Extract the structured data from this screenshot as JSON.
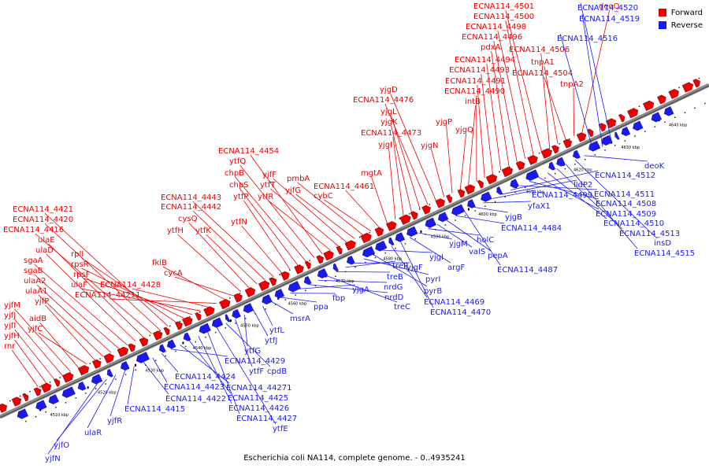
{
  "caption": "Escherichia coli NA114, complete genome. - 0..4935241",
  "legend": [
    {
      "label": "Forward",
      "color": "#ee0000"
    },
    {
      "label": "Reverse",
      "color": "#1a1aee"
    }
  ],
  "colors": {
    "forward": "#ee0000",
    "reverse": "#1a1aee",
    "backbone": "#888888"
  },
  "ticks": [
    "4510 kbp",
    "4520 kbp",
    "4530 kbp",
    "4540 kbp",
    "4550 kbp",
    "4560 kbp",
    "4570 kbp",
    "4580 kbp",
    "4590 kbp",
    "4600 kbp",
    "4610 kbp",
    "4620 kbp",
    "4630 kbp",
    "4640 kbp"
  ],
  "forward_labels": [
    "rnr",
    "yjfH",
    "yjfI",
    "yjfJ",
    "yjfM",
    "aidB",
    "yjfC",
    "yjfP",
    "ulaA1",
    "ulaA2",
    "sgaB",
    "sgaA",
    "ulaD",
    "ulaE",
    "ECNA114_4416",
    "ECNA114_4420",
    "ECNA114_4421",
    "rplI",
    "rpsR",
    "rpsF",
    "ulaF",
    "ECNA114_4428",
    "ECNA114_44211",
    "fklB",
    "cycA",
    "ytfH",
    "cysQ",
    "ytfK",
    "ECNA114_4442",
    "ECNA114_4443",
    "ytfN",
    "ytfP",
    "chpS",
    "chpB",
    "ytfQ",
    "ECNA114_4454",
    "ytfR",
    "ytfT",
    "yjfF",
    "yjfG",
    "pmbA",
    "cybC",
    "ECNA114_4461",
    "mgtA",
    "yjgI",
    "ECNA114_4473",
    "yjgK",
    "yjgL",
    "ECNA114_4476",
    "yjgD",
    "yjgN",
    "yjgP",
    "yjgQ",
    "intB",
    "ECNA114_4490",
    "ECNA114_4491",
    "ECNA114_4493",
    "ECNA114_4494",
    "pdxA",
    "ECNA114_4496",
    "ECNA114_4498",
    "ECNA114_4500",
    "ECNA114_4501",
    "ECNA114_4506",
    "tnpA1",
    "ECNA114_4504",
    "tnpA2",
    "deoQ"
  ],
  "reverse_labels": [
    "yjfN",
    "yjfO",
    "ulaR",
    "yjfR",
    "ECNA114_4415",
    "ECNA114_4422",
    "ECNA114_4423",
    "ECNA114_4424",
    "ECNA114_4429",
    "ECNA114_44271",
    "ECNA114_4425",
    "ECNA114_4426",
    "ECNA114_4427",
    "ytfE",
    "cpdB",
    "ytfF",
    "ytfG",
    "ytfJ",
    "ytfL",
    "msrA",
    "ppa",
    "fbp",
    "yjgA",
    "nrdD",
    "nrdG",
    "treC",
    "treB",
    "treR",
    "yjgF",
    "pyrI",
    "pyrB",
    "yjgI",
    "ECNA114_4469",
    "ECNA114_4470",
    "argF",
    "yjgM",
    "holC",
    "valS",
    "pepA",
    "ECNA114_4484",
    "ECNA114_4487",
    "yjgB",
    "yfaX1",
    "ECNA114_4499",
    "lldP2",
    "ECNA114_4512",
    "ECNA114_4511",
    "ECNA114_4508",
    "ECNA114_4509",
    "ECNA114_4510",
    "ECNA114_4513",
    "ECNA114_4515",
    "insD",
    "deoK",
    "ECNA114_4516",
    "ECNA114_4519",
    "ECNA114_4520"
  ]
}
